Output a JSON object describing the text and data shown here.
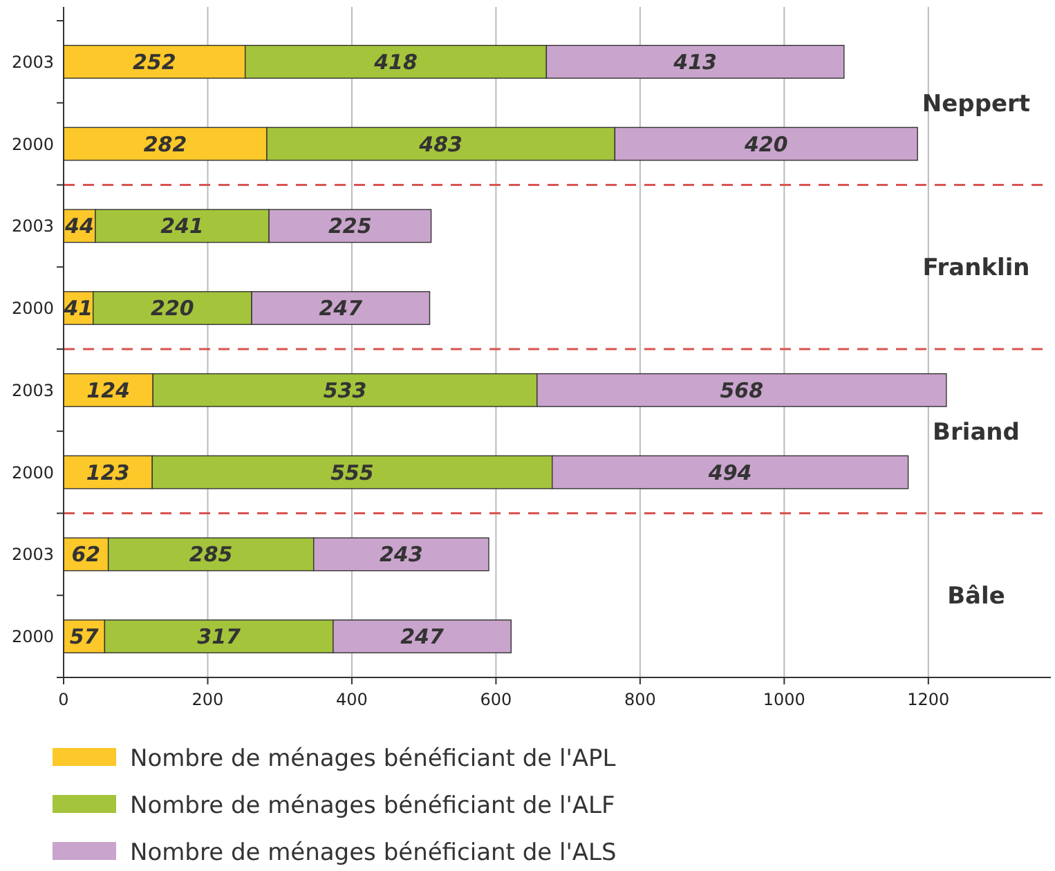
{
  "chart_data": {
    "type": "bar",
    "orientation": "horizontal",
    "stacked": true,
    "data_labels": true,
    "grid": "x",
    "legend": "bottom",
    "categories": [
      "2003",
      "2000",
      "2003",
      "2000",
      "2003",
      "2000",
      "2003",
      "2000"
    ],
    "series": [
      {
        "name": "Nombre de ménages bénéficiant de l'APL",
        "color": "#fcc82a",
        "values": [
          252,
          282,
          44,
          41,
          124,
          123,
          62,
          57
        ]
      },
      {
        "name": "Nombre de ménages bénéficiant de l'ALF",
        "color": "#a4c43c",
        "values": [
          418,
          483,
          241,
          220,
          533,
          555,
          285,
          317
        ]
      },
      {
        "name": "Nombre de ménages bénéficiant de l'ALS",
        "color": "#c9a4cc",
        "values": [
          413,
          420,
          225,
          247,
          568,
          494,
          243,
          247
        ]
      }
    ],
    "xlim": [
      0,
      1370
    ],
    "xticks": [
      0,
      200,
      400,
      600,
      800,
      1000,
      1200
    ],
    "annotations": [
      "Neppert",
      "Franklin",
      "Briand",
      "Bâle"
    ]
  }
}
